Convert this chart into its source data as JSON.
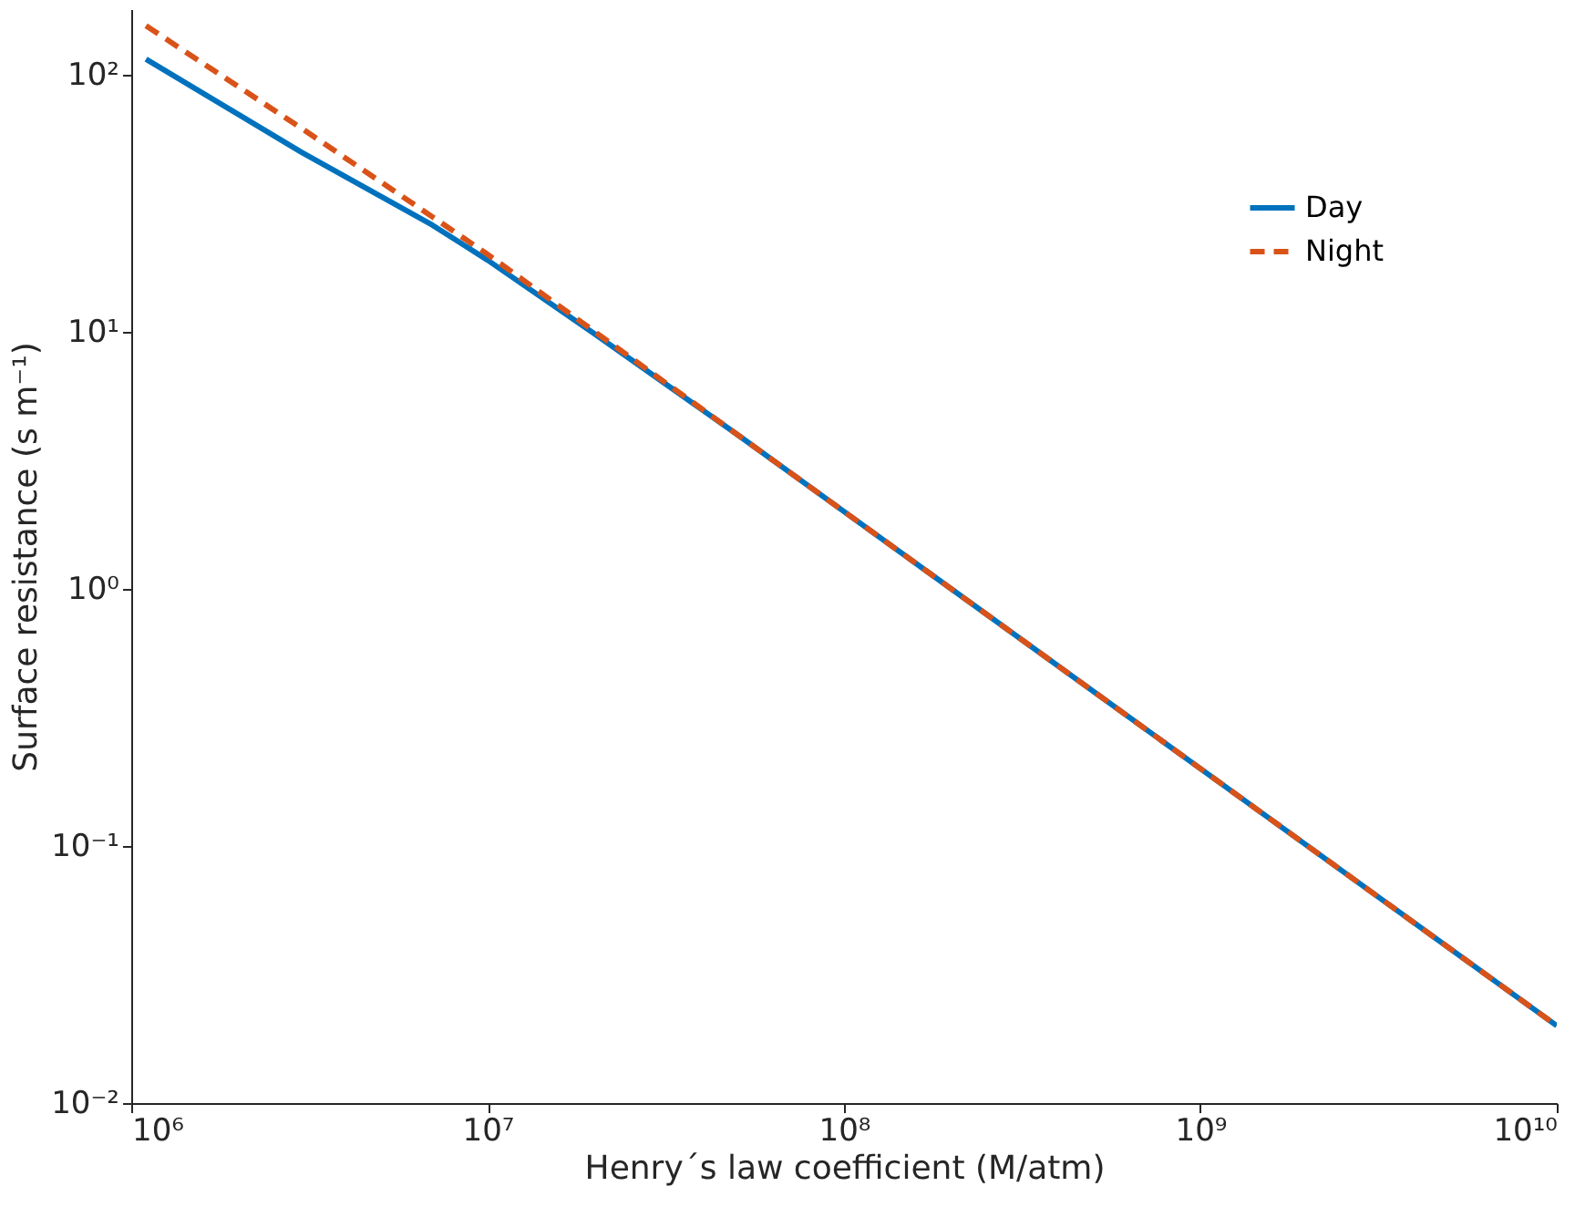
{
  "chart_data": {
    "type": "line",
    "xlabel": "Henry´s law coefficient (M/atm)",
    "ylabel": "Surface resistance (s m⁻¹)",
    "log": "xy",
    "grid": false,
    "legend": "top right",
    "marker": "none",
    "xlim": [
      1000000,
      10000000000
    ],
    "ylim": [
      0.01,
      180
    ],
    "xticks": [
      {
        "value": 1000000,
        "label": "10⁶"
      },
      {
        "value": 10000000,
        "label": "10⁷"
      },
      {
        "value": 100000000,
        "label": "10⁸"
      },
      {
        "value": 1000000000,
        "label": "10⁹"
      },
      {
        "value": 10000000000,
        "label": "10¹⁰"
      }
    ],
    "yticks": [
      {
        "value": 0.01,
        "label": "10⁻²"
      },
      {
        "value": 0.1,
        "label": "10⁻¹"
      },
      {
        "value": 1,
        "label": "10⁰"
      },
      {
        "value": 10,
        "label": "10¹"
      },
      {
        "value": 100,
        "label": "10²"
      }
    ],
    "x": [
      1100000,
      3000000,
      7000000,
      10000000,
      20000000,
      50000000,
      100000000,
      1000000000,
      10000000000
    ],
    "series": [
      {
        "name": "Day",
        "color": "#0072bd",
        "line_style": "solid",
        "values": [
          115,
          50,
          26,
          19,
          9.8,
          4,
          2,
          0.2,
          0.02
        ]
      },
      {
        "name": "Night",
        "color": "#d95319",
        "line_style": "dashed",
        "values": [
          155,
          62,
          28,
          20,
          10,
          4,
          2,
          0.2,
          0.02
        ]
      }
    ]
  }
}
